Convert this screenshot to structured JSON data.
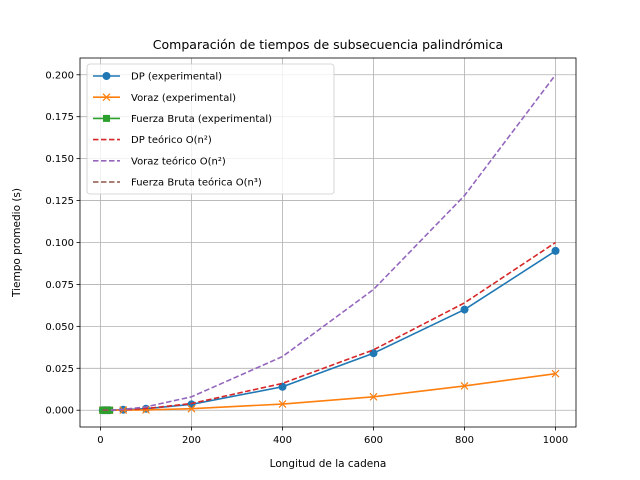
{
  "chart_data": {
    "type": "line",
    "title": "Comparación de tiempos de subsecuencia palindrómica",
    "xlabel": "Longitud de la cadena",
    "ylabel": "Tiempo promedio (s)",
    "xlim": [
      -45,
      1045
    ],
    "ylim": [
      -0.01,
      0.21
    ],
    "xticks": [
      0,
      200,
      400,
      600,
      800,
      1000
    ],
    "xtick_labels": [
      "0",
      "200",
      "400",
      "600",
      "800",
      "1000"
    ],
    "yticks": [
      0.0,
      0.025,
      0.05,
      0.075,
      0.1,
      0.125,
      0.15,
      0.175,
      0.2
    ],
    "ytick_labels": [
      "0.000",
      "0.025",
      "0.050",
      "0.075",
      "0.100",
      "0.125",
      "0.150",
      "0.175",
      "0.200"
    ],
    "grid": true,
    "legend_position": "top-left",
    "series": [
      {
        "name": "DP (experimental)",
        "color": "#1f77b4",
        "style": "solid",
        "marker": "circle",
        "x": [
          5,
          10,
          15,
          20,
          50,
          100,
          200,
          400,
          600,
          800,
          1000
        ],
        "y": [
          0.0,
          0.0,
          0.0,
          0.0,
          0.0003,
          0.0009,
          0.0035,
          0.014,
          0.034,
          0.06,
          0.095
        ]
      },
      {
        "name": "Voraz (experimental)",
        "color": "#ff7f0e",
        "style": "solid",
        "marker": "x",
        "x": [
          5,
          10,
          15,
          20,
          50,
          100,
          200,
          400,
          600,
          800,
          1000
        ],
        "y": [
          0.0,
          0.0,
          0.0,
          0.0,
          0.0001,
          0.0002,
          0.0009,
          0.0037,
          0.008,
          0.0145,
          0.0218
        ]
      },
      {
        "name": "Fuerza Bruta (experimental)",
        "color": "#2ca02c",
        "style": "solid",
        "marker": "square",
        "x": [
          5,
          10,
          15,
          20
        ],
        "y": [
          0.0,
          0.0,
          0.0,
          0.0
        ]
      },
      {
        "name": "DP teórico O(n²)",
        "color": "#d62728",
        "style": "dashed",
        "marker": "none",
        "x": [
          5,
          10,
          15,
          20,
          50,
          100,
          200,
          400,
          600,
          800,
          1000
        ],
        "y": [
          0.0,
          0.0,
          0.0,
          0.0,
          0.00025,
          0.001,
          0.004,
          0.016,
          0.036,
          0.064,
          0.1
        ]
      },
      {
        "name": "Voraz teórico O(n²)",
        "color": "#9467bd",
        "style": "dashed",
        "marker": "none",
        "x": [
          5,
          10,
          15,
          20,
          50,
          100,
          200,
          400,
          600,
          800,
          1000
        ],
        "y": [
          0.0,
          0.0,
          0.0,
          0.0,
          0.0005,
          0.002,
          0.008,
          0.032,
          0.072,
          0.128,
          0.2
        ]
      },
      {
        "name": "Fuerza Bruta teórica O(n³)",
        "color": "#8c564b",
        "style": "dashed",
        "marker": "none",
        "x": [
          5,
          10,
          15,
          20
        ],
        "y": [
          0.0,
          0.0,
          0.0,
          0.0
        ]
      }
    ]
  }
}
